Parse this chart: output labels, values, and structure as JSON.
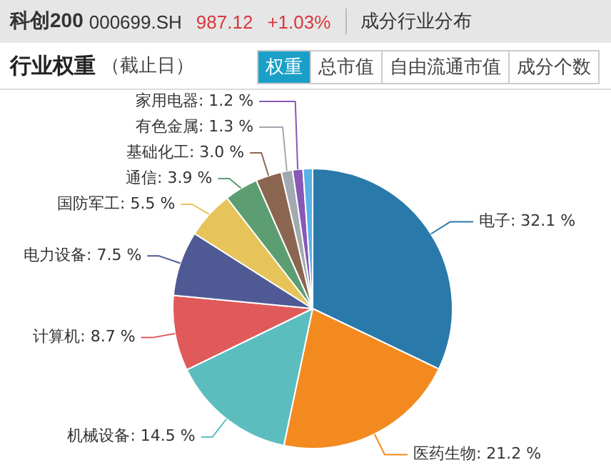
{
  "chart_data": {
    "type": "pie",
    "title": "行业权重",
    "subtitle": "（截止日）",
    "annotations": [
      "科创200",
      "000699.SH",
      "987.12",
      "+1.03%",
      "成分行业分布",
      "权重",
      "总市值",
      "自由流通市值",
      "成分个数"
    ],
    "categories": [
      "电子",
      "医药生物",
      "机械设备",
      "计算机",
      "电力设备",
      "国防军工",
      "通信",
      "基础化工",
      "有色金属",
      "家用电器",
      null
    ],
    "values": [
      32.1,
      21.2,
      14.5,
      8.7,
      7.5,
      5.5,
      3.9,
      3.0,
      1.3,
      1.2,
      1.1
    ],
    "colors": [
      "#2a79ab",
      "#f28a1f",
      "#5cbdbf",
      "#e05a5a",
      "#4f5a94",
      "#e6c45a",
      "#5c9e72",
      "#8a6650",
      "#a2a9b1",
      "#8758b5",
      "#59b2e6"
    ],
    "value_labels": [
      ": 32.1 %",
      ": 21.2 %",
      ": 14.5 %",
      ": 8.7 %",
      ": 7.5 %",
      ": 5.5 %",
      ": 3.9 %",
      ": 3.0 %",
      ": 1.3 %",
      ": 1.2 %",
      null
    ],
    "legend": false
  }
}
